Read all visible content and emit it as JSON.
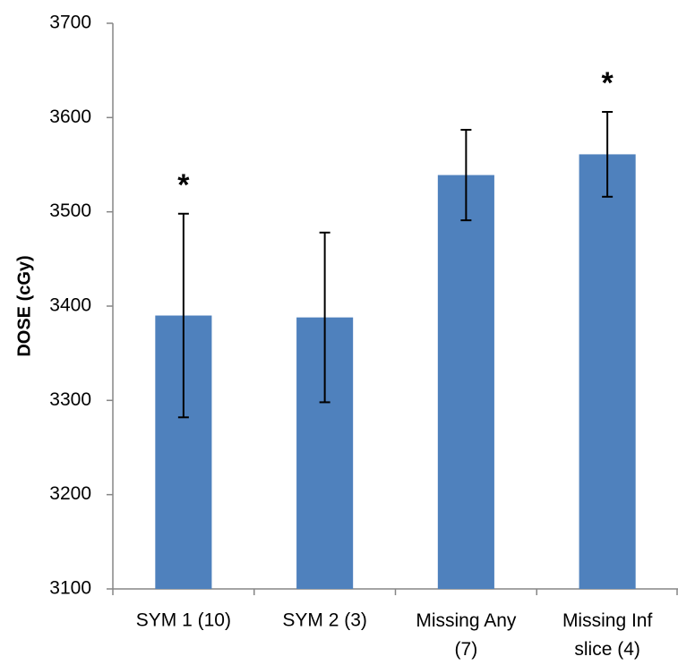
{
  "chart_data": {
    "type": "bar",
    "y_label": "DOSE (cGy)",
    "categories": [
      "SYM 1 (10)",
      "SYM 2 (3)",
      "Missing Any (7)",
      "Missing Inf slice (4)"
    ],
    "values": [
      3390,
      3388,
      3539,
      3561
    ],
    "errors": [
      108,
      90,
      48,
      45
    ],
    "color": "#4f81bd",
    "ylim": [
      3100,
      3700
    ],
    "yticks": [
      3100,
      3200,
      3300,
      3400,
      3500,
      3600,
      3700
    ],
    "grid": false,
    "annotations": [
      {
        "text": "*",
        "category": "SYM 1 (10)"
      },
      {
        "text": "*",
        "category": "Missing Inf slice (4)"
      }
    ]
  }
}
